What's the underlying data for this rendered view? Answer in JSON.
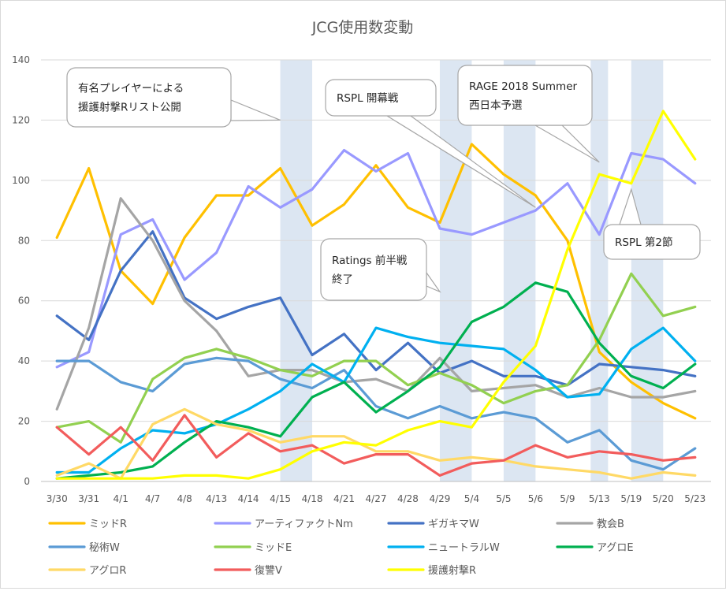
{
  "chart_data": {
    "type": "line",
    "title": "JCG使用数変動",
    "xlabel": "",
    "ylabel": "",
    "ylim": [
      0,
      140
    ],
    "yticks": [
      0,
      20,
      40,
      60,
      80,
      100,
      120,
      140
    ],
    "grid": true,
    "legend_position": "bottom",
    "categories": [
      "3/30",
      "3/31",
      "4/1",
      "4/7",
      "4/8",
      "4/13",
      "4/14",
      "4/15",
      "4/18",
      "4/21",
      "4/27",
      "4/28",
      "4/29",
      "5/4",
      "5/5",
      "5/6",
      "5/9",
      "5/13",
      "5/19",
      "5/20",
      "5/23"
    ],
    "highlight_bands": [
      {
        "from": "4/15",
        "to": "4/18"
      },
      {
        "from": "4/29",
        "to": "5/4"
      },
      {
        "from": "5/5",
        "to": "5/6"
      },
      {
        "from": "5/13",
        "to": "5/13"
      },
      {
        "from": "5/19",
        "to": "5/20"
      }
    ],
    "series": [
      {
        "name": "ミッドR",
        "color": "#FFC000",
        "values": [
          81,
          104,
          70,
          59,
          81,
          95,
          95,
          104,
          85,
          92,
          105,
          91,
          86,
          112,
          102,
          95,
          80,
          43,
          33,
          26,
          21
        ]
      },
      {
        "name": "アーティファクトNm",
        "color": "#9999FF",
        "values": [
          38,
          43,
          82,
          87,
          67,
          76,
          98,
          91,
          97,
          110,
          103,
          109,
          84,
          82,
          86,
          90,
          99,
          82,
          109,
          107,
          99
        ]
      },
      {
        "name": "ギガキマW",
        "color": "#4472C4",
        "values": [
          55,
          47,
          70,
          83,
          61,
          54,
          58,
          61,
          42,
          49,
          37,
          46,
          36,
          40,
          35,
          35,
          32,
          39,
          38,
          37,
          35
        ]
      },
      {
        "name": "教会B",
        "color": "#A5A5A5",
        "values": [
          24,
          51,
          94,
          80,
          60,
          50,
          35,
          37,
          37,
          33,
          34,
          30,
          41,
          30,
          31,
          32,
          28,
          31,
          28,
          28,
          30
        ]
      },
      {
        "name": "秘術W",
        "color": "#5B9BD5",
        "values": [
          40,
          40,
          33,
          30,
          39,
          41,
          40,
          34,
          31,
          37,
          25,
          21,
          25,
          21,
          23,
          21,
          13,
          17,
          7,
          4,
          11
        ]
      },
      {
        "name": "ミッドE",
        "color": "#92D050",
        "values": [
          18,
          20,
          13,
          34,
          41,
          44,
          41,
          37,
          35,
          40,
          40,
          32,
          36,
          32,
          26,
          30,
          32,
          47,
          69,
          55,
          58
        ]
      },
      {
        "name": "ニュートラルW",
        "color": "#00B0F0",
        "values": [
          3,
          3,
          11,
          17,
          16,
          19,
          24,
          30,
          39,
          33,
          51,
          48,
          46,
          45,
          44,
          37,
          28,
          29,
          44,
          51,
          40
        ]
      },
      {
        "name": "アグロE",
        "color": "#00B050",
        "values": [
          1,
          2,
          3,
          5,
          13,
          20,
          18,
          15,
          28,
          33,
          23,
          30,
          38,
          53,
          58,
          66,
          63,
          46,
          35,
          31,
          39
        ]
      },
      {
        "name": "アグロR",
        "color": "#FFD966",
        "values": [
          2,
          6,
          1,
          19,
          24,
          19,
          17,
          13,
          15,
          15,
          10,
          10,
          7,
          8,
          7,
          5,
          4,
          3,
          1,
          3,
          2
        ]
      },
      {
        "name": "復讐V",
        "color": "#F25C5C",
        "values": [
          18,
          9,
          18,
          7,
          22,
          8,
          16,
          10,
          12,
          6,
          9,
          9,
          2,
          6,
          7,
          12,
          8,
          10,
          9,
          7,
          8
        ]
      },
      {
        "name": "援護射撃R",
        "color": "#FFFF00",
        "values": [
          1,
          1,
          1,
          1,
          2,
          2,
          1,
          4,
          10,
          13,
          12,
          17,
          20,
          18,
          33,
          45,
          77,
          102,
          99,
          123,
          107
        ]
      }
    ],
    "annotations": [
      {
        "id": "callout-1",
        "lines": [
          "有名プレイヤーによる",
          "援護射撃Rリスト公開"
        ],
        "points_to": {
          "x": "4/15",
          "y": 120
        }
      },
      {
        "id": "callout-2",
        "lines": [
          "RSPL 開幕戦"
        ],
        "points_to": {
          "x": "5/6",
          "y": 91
        }
      },
      {
        "id": "callout-3",
        "lines": [
          "RAGE 2018 Summer",
          "西日本予選"
        ],
        "points_to": {
          "x": "5/13",
          "y": 106
        }
      },
      {
        "id": "callout-4",
        "lines": [
          "Ratings 前半戦",
          "終了"
        ],
        "points_to": {
          "x": "4/29",
          "y": 63
        }
      },
      {
        "id": "callout-5",
        "lines": [
          "RSPL 第2節"
        ],
        "points_to": {
          "x": "5/19",
          "y": 97
        }
      }
    ]
  }
}
